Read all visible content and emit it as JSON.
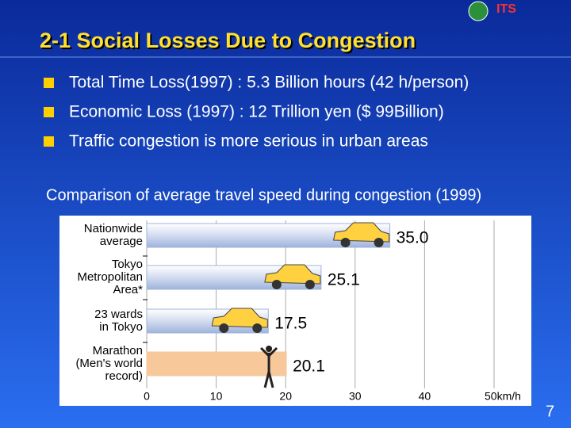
{
  "logo": "ITS",
  "slide_title": "2-1 Social Losses Due to Congestion",
  "bullets": [
    "Total Time Loss(1997) : 5.3 Billion hours (42 h/person)",
    "Economic Loss (1997) : 12 Trillion yen ($ 99Billion)",
    "Traffic congestion is more serious in urban areas"
  ],
  "page_number": "7",
  "chart_data": {
    "type": "hbar",
    "title": "Comparison of average travel speed during congestion (1999)",
    "categories": [
      "Nationwide\naverage",
      "Tokyo\nMetropolitan\nArea*",
      "23 wards\nin Tokyo",
      "Marathon\n(Men's world\nrecord)"
    ],
    "values": [
      35.0,
      25.1,
      17.5,
      20.1
    ],
    "value_labels": [
      "35.0",
      "25.1",
      "17.5",
      "20.1"
    ],
    "colors": [
      "#9fb3dc",
      "#9fb3dc",
      "#9fb3dc",
      "#f6c89a"
    ],
    "xlim": [
      0,
      50
    ],
    "xticks": [
      0,
      10,
      20,
      30,
      40,
      {
        "value": 50,
        "label": "50km/h"
      }
    ],
    "grid": true
  }
}
